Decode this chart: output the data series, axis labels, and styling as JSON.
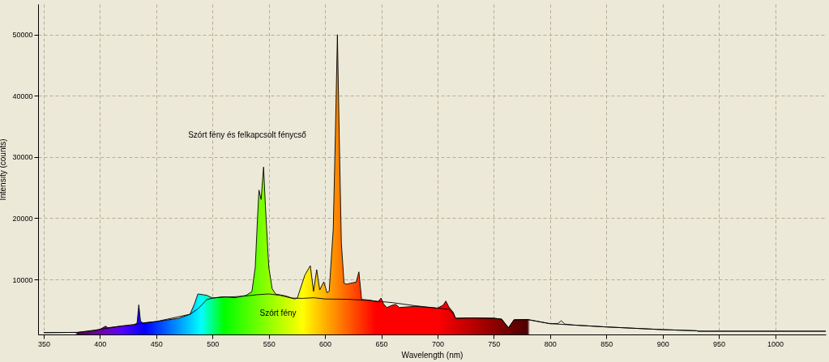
{
  "chart_data": {
    "type": "line",
    "xlabel": "Wavelength (nm)",
    "ylabel": "Intensity (counts)",
    "xlim": [
      345,
      1045
    ],
    "ylim": [
      1000,
      55000
    ],
    "xticks": [
      350,
      400,
      450,
      500,
      550,
      600,
      650,
      700,
      750,
      800,
      850,
      900,
      950,
      1000
    ],
    "yticks": [
      10000,
      20000,
      30000,
      40000,
      50000
    ],
    "grid": true,
    "marker": "none",
    "line_style": "solid",
    "annotations": [
      "Szórt fény és felkapcsolt fénycső",
      "Szórt fény"
    ],
    "series": [
      {
        "type": "area",
        "color": "#000000",
        "x": [
          350,
          380,
          395,
          400,
          405,
          407,
          420,
          430,
          433,
          434.5,
          436,
          438,
          450,
          470,
          480,
          484,
          487,
          495,
          500,
          510,
          520,
          530,
          535,
          538,
          540,
          541.3,
          543.2,
          545.4,
          547,
          550,
          553,
          556,
          565,
          573,
          575.4,
          582.1,
          586.9,
          589.8,
          592.6,
          595.3,
          598.9,
          601.8,
          603.7,
          607.3,
          609.2,
          611,
          612.6,
          614.5,
          616.9,
          619.3,
          622.9,
          627.7,
          630.1,
          632.5,
          640,
          647,
          649.8,
          652,
          655,
          660,
          663,
          666,
          680,
          700,
          705,
          707.4,
          710,
          714,
          716,
          730,
          750,
          757,
          763,
          768,
          780,
          800,
          807,
          810,
          813,
          820,
          850,
          900,
          930,
          932,
          1045
        ],
        "values": [
          1300,
          1340,
          1600,
          1830,
          2360,
          2100,
          2400,
          2500,
          2900,
          5840,
          3200,
          2890,
          3110,
          3640,
          4300,
          6000,
          7620,
          7400,
          6950,
          7170,
          7000,
          7400,
          8000,
          12000,
          20000,
          24600,
          23060,
          28360,
          22000,
          12000,
          8500,
          7600,
          7300,
          6800,
          6950,
          10700,
          12250,
          8050,
          11590,
          8280,
          9600,
          7830,
          8050,
          18200,
          33650,
          50000,
          33650,
          16000,
          9380,
          9200,
          9380,
          9560,
          11230,
          6730,
          6600,
          6300,
          6950,
          6000,
          5400,
          5800,
          5900,
          5400,
          5600,
          5300,
          5800,
          6470,
          5500,
          4600,
          3640,
          3700,
          3650,
          3500,
          2090,
          3400,
          3440,
          2760,
          2800,
          3240,
          2700,
          2550,
          2230,
          1790,
          1610,
          1530,
          1530
        ]
      },
      {
        "color": "#000000",
        "x": [
          350,
          380,
          400,
          420,
          450,
          480,
          487,
          495,
          500,
          510,
          520,
          530,
          540,
          550,
          560,
          570,
          580,
          590,
          600,
          620,
          640,
          660,
          680,
          700,
          710,
          714,
          716,
          730,
          750,
          757,
          763,
          768,
          780,
          800,
          820,
          850,
          900,
          930,
          932,
          1045
        ],
        "values": [
          1300,
          1340,
          1830,
          2400,
          3110,
          4300,
          5180,
          6700,
          6950,
          7100,
          7170,
          7300,
          7500,
          7620,
          7400,
          6950,
          6900,
          7000,
          6800,
          6750,
          6550,
          6200,
          5700,
          5300,
          5100,
          4400,
          3640,
          3700,
          3650,
          3500,
          2090,
          3400,
          3440,
          2760,
          2550,
          2230,
          1790,
          1610,
          1530,
          1530
        ]
      }
    ]
  }
}
